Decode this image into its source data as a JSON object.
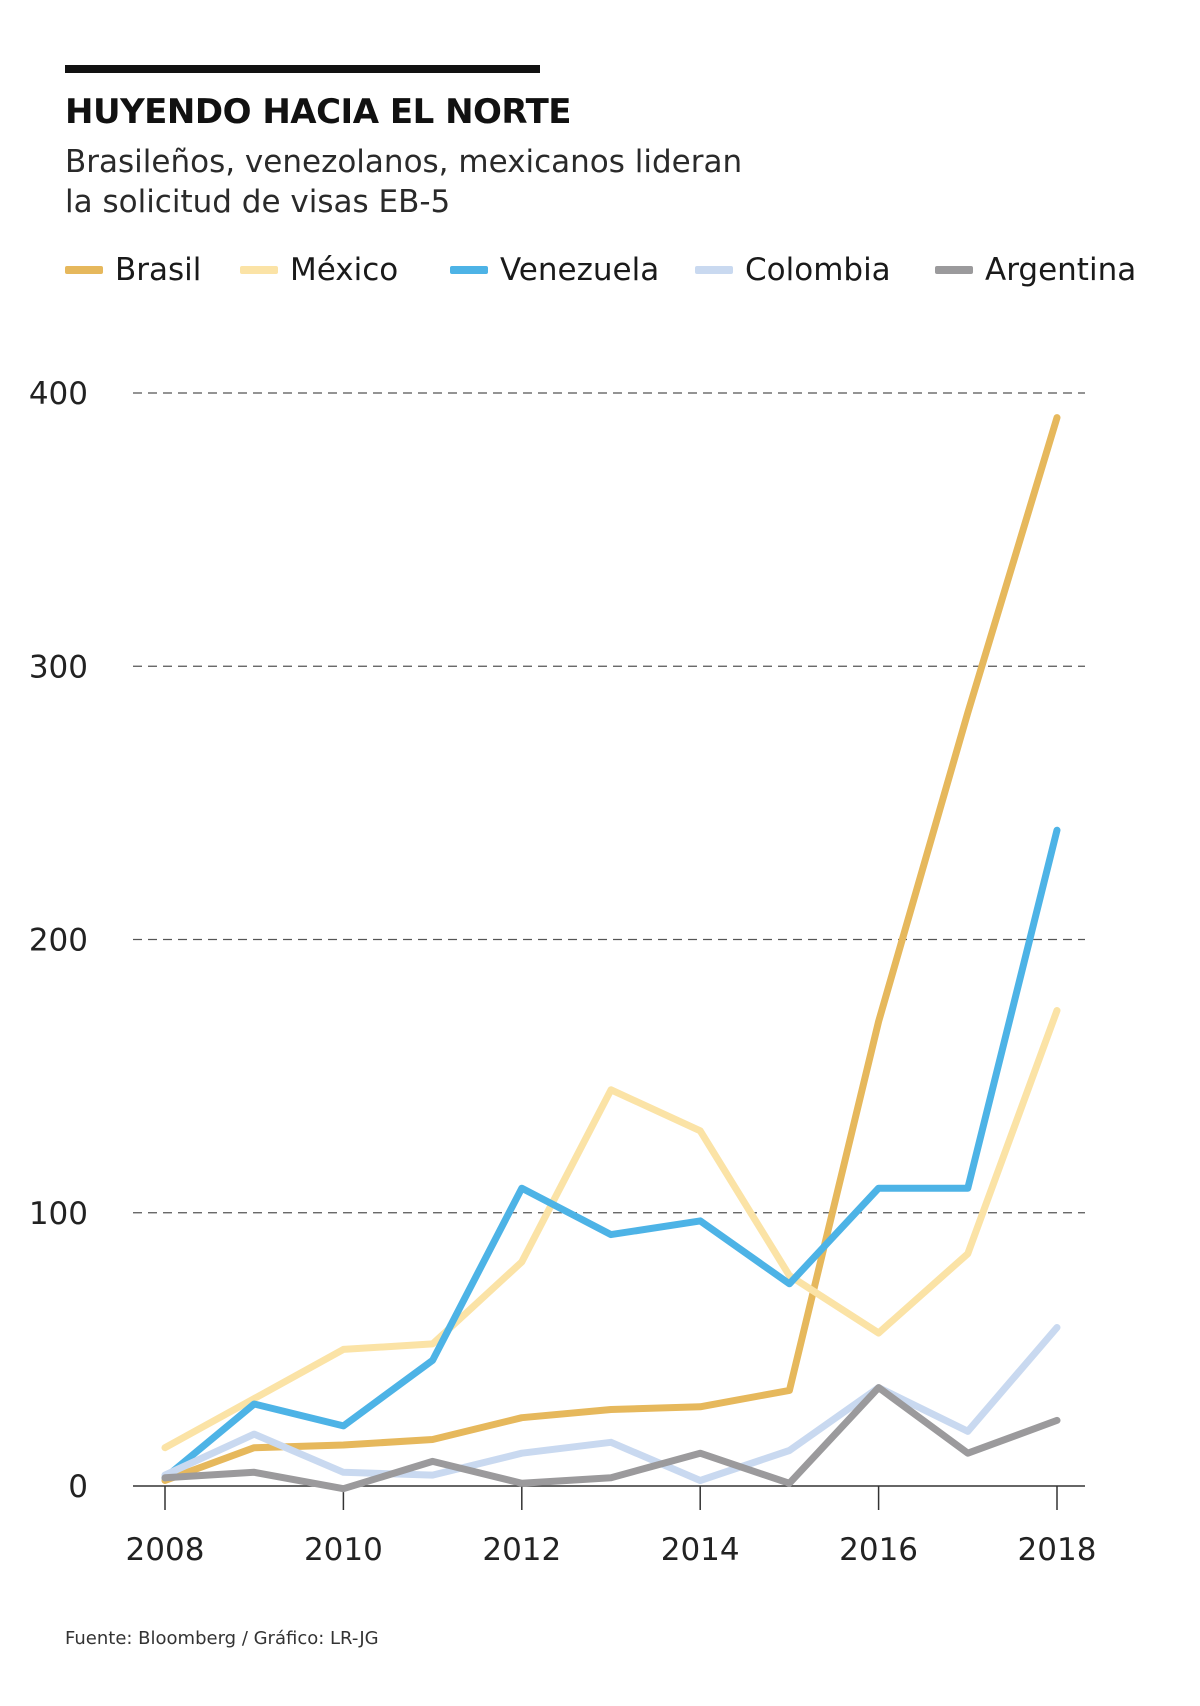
{
  "header": {
    "title": "HUYENDO HACIA EL NORTE",
    "subtitle_line1": "Brasileños, venezolanos, mexicanos lideran",
    "subtitle_line2": "la solicitud de visas EB-5"
  },
  "source": "Fuente: Bloomberg / Gráfico: LR-JG",
  "chart_data": {
    "type": "line",
    "title": "HUYENDO HACIA EL NORTE",
    "subtitle": "Brasileños, venezolanos, mexicanos lideran la solicitud de visas EB-5",
    "xlabel": "",
    "ylabel": "",
    "x": [
      2008,
      2009,
      2010,
      2011,
      2012,
      2013,
      2014,
      2015,
      2016,
      2017,
      2018
    ],
    "x_ticks": [
      "2008",
      "2010",
      "2012",
      "2014",
      "2016",
      "2018"
    ],
    "y_ticks": [
      "0",
      "100",
      "200",
      "300",
      "400"
    ],
    "ylim": [
      0,
      400
    ],
    "grid": "horizontal dashed",
    "legend_position": "top",
    "series": [
      {
        "name": "Brasil",
        "color": "#e6b85c",
        "values": [
          2,
          14,
          15,
          17,
          25,
          28,
          29,
          35,
          170,
          283,
          391
        ]
      },
      {
        "name": "México",
        "color": "#fbe3a6",
        "values": [
          14,
          32,
          50,
          52,
          82,
          145,
          130,
          77,
          56,
          85,
          174
        ]
      },
      {
        "name": "Venezuela",
        "color": "#4db3e6",
        "values": [
          3,
          30,
          22,
          46,
          109,
          92,
          97,
          74,
          109,
          109,
          240
        ]
      },
      {
        "name": "Colombia",
        "color": "#c9d9f0",
        "values": [
          4,
          19,
          5,
          4,
          12,
          16,
          2,
          13,
          36,
          20,
          58
        ]
      },
      {
        "name": "Argentina",
        "color": "#9b9a9c",
        "values": [
          3,
          5,
          -1,
          9,
          1,
          3,
          12,
          1,
          36,
          12,
          24
        ]
      }
    ]
  }
}
